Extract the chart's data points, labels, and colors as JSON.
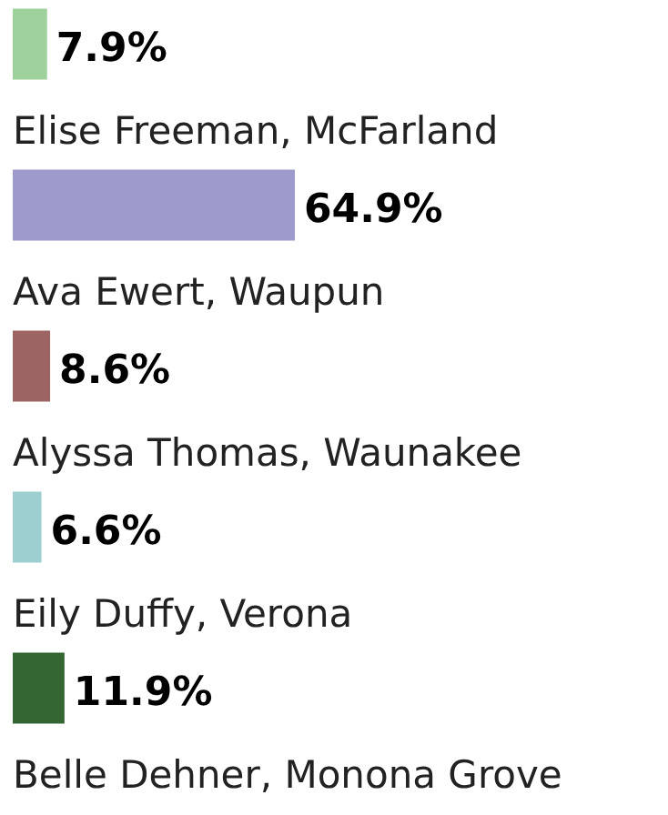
{
  "chart_data": {
    "type": "bar",
    "orientation": "horizontal",
    "categories": [
      null,
      "Elise Freeman, McFarland",
      "Ava Ewert, Waupun",
      "Alyssa Thomas, Waunakee",
      "Eily Duffy, Verona",
      "Belle Dehner, Monona Grove"
    ],
    "values": [
      7.9,
      64.9,
      8.6,
      6.6,
      11.9,
      null
    ],
    "colors": [
      "#9fd19c",
      "#9e9acc",
      "#9c6463",
      "#9ecfd0",
      "#336633",
      null
    ],
    "value_labels": [
      "7.9%",
      "64.9%",
      "8.6%",
      "6.6%",
      "11.9%",
      null
    ]
  }
}
